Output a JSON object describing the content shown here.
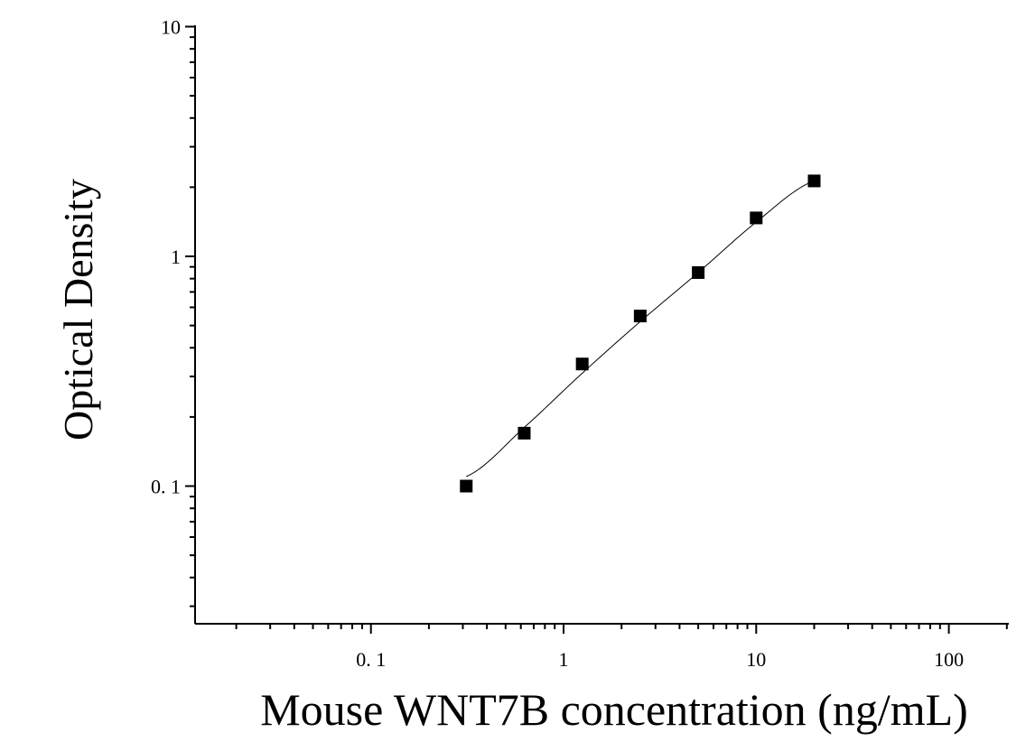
{
  "chart_data": {
    "type": "scatter",
    "title": "",
    "xlabel": "Mouse WNT7B concentration (ng/mL)",
    "ylabel": "Optical Density",
    "x_scale": "log",
    "y_scale": "log",
    "xlim": [
      0.0125,
      200
    ],
    "ylim": [
      0.025,
      10
    ],
    "x_ticks": [
      {
        "value": 0.1,
        "label": "0. 1"
      },
      {
        "value": 1,
        "label": "1"
      },
      {
        "value": 10,
        "label": "10"
      },
      {
        "value": 100,
        "label": "100"
      }
    ],
    "y_ticks": [
      {
        "value": 0.1,
        "label": "0. 1"
      },
      {
        "value": 1,
        "label": "1"
      },
      {
        "value": 10,
        "label": "10"
      }
    ],
    "grid": false,
    "marker": "square",
    "color": "#000000",
    "x": [
      0.3125,
      0.625,
      1.25,
      2.5,
      5,
      10,
      20
    ],
    "y": [
      0.1,
      0.17,
      0.34,
      0.55,
      0.85,
      1.47,
      2.13
    ],
    "fit_curve": {
      "x": [
        0.3125,
        0.625,
        1.25,
        2.5,
        5,
        10,
        20
      ],
      "y": [
        0.11,
        0.18,
        0.31,
        0.52,
        0.85,
        1.41,
        2.13
      ]
    }
  }
}
